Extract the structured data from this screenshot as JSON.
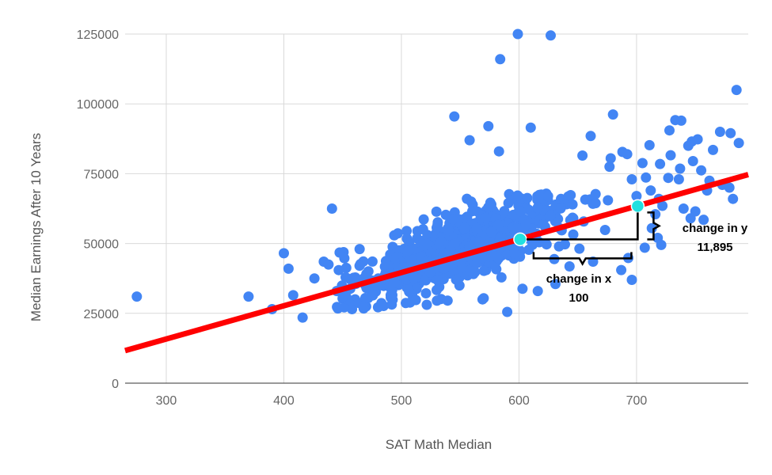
{
  "chart_data": {
    "type": "scatter",
    "xlabel": "SAT Math Median",
    "ylabel": "Median Earnings After 10 Years",
    "xlim": [
      265,
      795
    ],
    "ylim": [
      0,
      125000
    ],
    "x_ticks": [
      300,
      400,
      500,
      600,
      700
    ],
    "y_ticks": [
      0,
      25000,
      50000,
      75000,
      100000,
      125000
    ],
    "x_tick_labels": [
      "300",
      "400",
      "500",
      "600",
      "700"
    ],
    "y_tick_labels": [
      "0",
      "25000",
      "50000",
      "75000",
      "100000",
      "125000"
    ],
    "grid": true,
    "colors": {
      "points": "#4285f4",
      "trend": "#ff0000",
      "highlight": "#22e0e0",
      "grid": "#d9d9d9"
    },
    "trendline": {
      "slope": 118.95,
      "intercept": -19875
    },
    "highlight_points": [
      {
        "x": 601,
        "y": 51495
      },
      {
        "x": 701,
        "y": 63390
      }
    ],
    "annotations": {
      "change_x_label": "change in x",
      "change_x_value": "100",
      "change_y_label": "change in y",
      "change_y_value": "11,895"
    },
    "outliers": [
      [
        275,
        31000
      ],
      [
        370,
        31000
      ],
      [
        400,
        46500
      ],
      [
        404,
        41000
      ],
      [
        390,
        26500
      ],
      [
        408,
        31500
      ],
      [
        416,
        23500
      ],
      [
        426,
        37500
      ],
      [
        434,
        43500
      ],
      [
        438,
        42500
      ],
      [
        441,
        62500
      ],
      [
        599,
        125000
      ],
      [
        627,
        124500
      ],
      [
        584,
        116000
      ],
      [
        545,
        95500
      ],
      [
        785,
        105000
      ],
      [
        733,
        94200
      ],
      [
        738,
        94000
      ],
      [
        771,
        90000
      ],
      [
        780,
        89500
      ],
      [
        787,
        86000
      ],
      [
        680,
        96200
      ],
      [
        661,
        88500
      ],
      [
        558,
        87000
      ],
      [
        583,
        83000
      ],
      [
        574,
        92000
      ],
      [
        610,
        91500
      ],
      [
        654,
        81500
      ],
      [
        677,
        77500
      ],
      [
        678,
        80500
      ],
      [
        688,
        82800
      ],
      [
        692,
        82000
      ],
      [
        711,
        85200
      ],
      [
        728,
        90500
      ],
      [
        744,
        85000
      ],
      [
        747,
        86500
      ],
      [
        752,
        87300
      ],
      [
        729,
        81600
      ],
      [
        748,
        79500
      ],
      [
        720,
        78500
      ],
      [
        737,
        76800
      ],
      [
        736,
        73000
      ],
      [
        727,
        73500
      ],
      [
        755,
        76200
      ],
      [
        762,
        72500
      ],
      [
        760,
        69000
      ],
      [
        773,
        71000
      ],
      [
        782,
        66000
      ],
      [
        779,
        70000
      ],
      [
        765,
        83500
      ],
      [
        705,
        78800
      ],
      [
        708,
        73600
      ],
      [
        696,
        73000
      ],
      [
        700,
        67000
      ],
      [
        712,
        69000
      ],
      [
        719,
        66000
      ],
      [
        716,
        60500
      ],
      [
        722,
        63500
      ],
      [
        740,
        62500
      ],
      [
        746,
        59000
      ],
      [
        750,
        61500
      ],
      [
        757,
        58500
      ],
      [
        713,
        55500
      ],
      [
        718,
        52000
      ],
      [
        721,
        49500
      ],
      [
        707,
        48500
      ],
      [
        693,
        44800
      ],
      [
        687,
        40500
      ],
      [
        696,
        37000
      ],
      [
        663,
        43500
      ],
      [
        643,
        41800
      ],
      [
        631,
        35500
      ],
      [
        616,
        33000
      ],
      [
        603,
        33800
      ],
      [
        590,
        25500
      ],
      [
        569,
        30000
      ],
      [
        470,
        27500
      ],
      [
        458,
        26500
      ],
      [
        445,
        33000
      ],
      [
        452,
        30500
      ]
    ],
    "cluster_seed": 12345,
    "cluster_count": 720
  }
}
